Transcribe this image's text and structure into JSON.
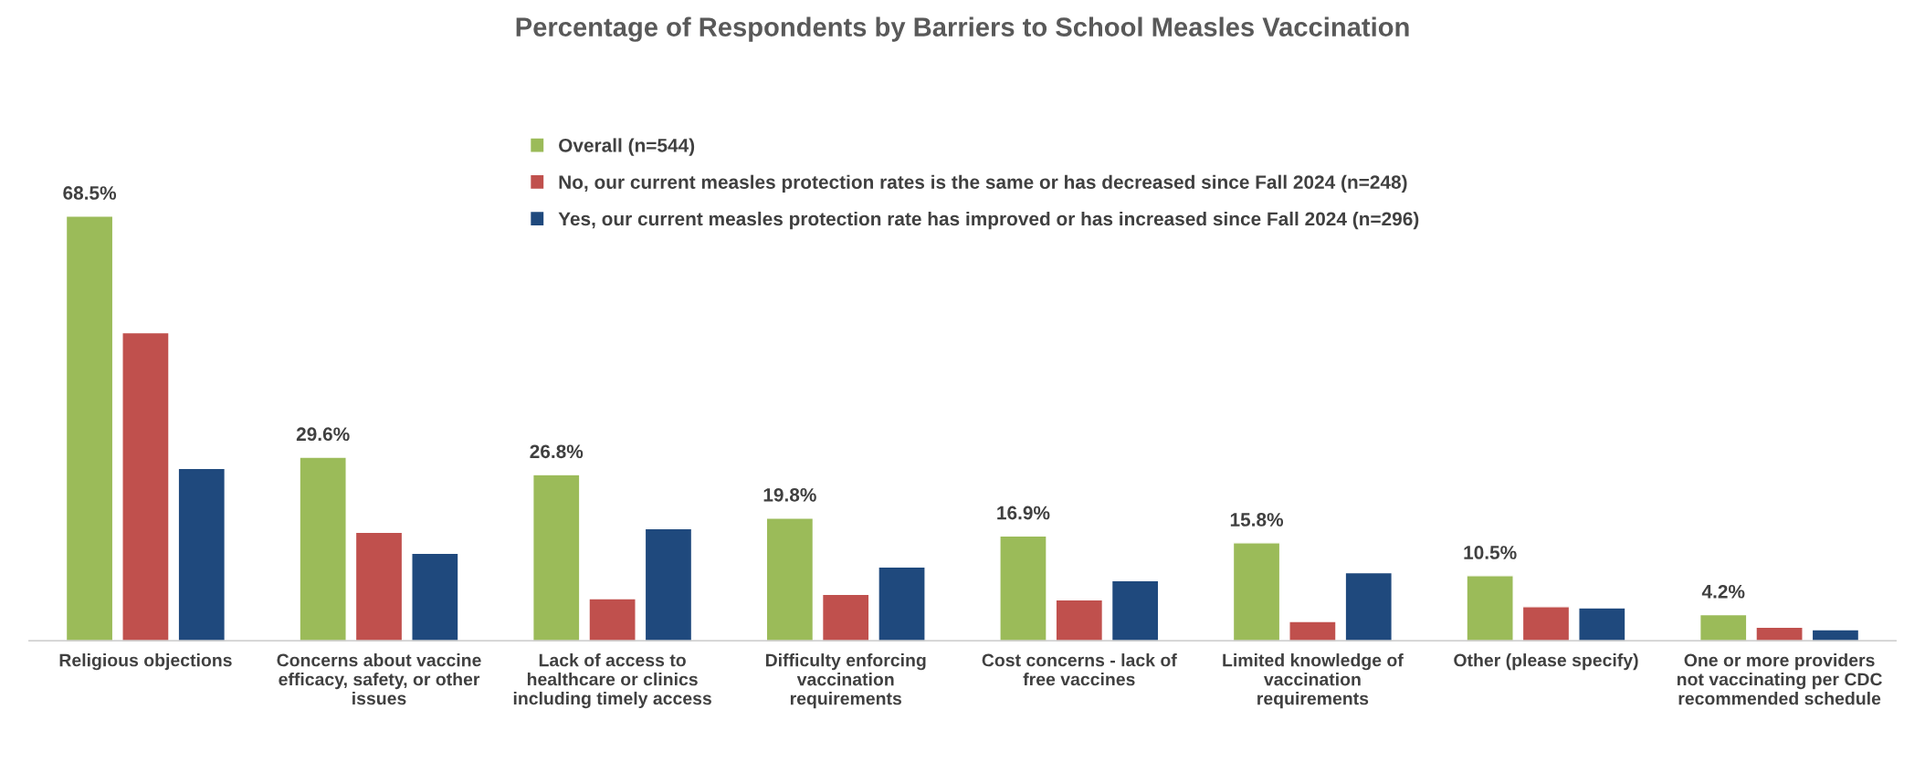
{
  "chart_data": {
    "type": "bar",
    "title": "Percentage of Respondents by Barriers to School Measles Vaccination",
    "categories": [
      "Religious objections",
      "Concerns about vaccine\nefficacy, safety, or other\nissues",
      "Lack of access to\nhealthcare or clinics\nincluding timely access",
      "Difficulty enforcing\nvaccination\nrequirements",
      "Cost concerns - lack of\nfree vaccines",
      "Limited knowledge of\nvaccination\nrequirements",
      "Other (please specify)",
      "One or more providers\nnot vaccinating per CDC\nrecommended schedule"
    ],
    "series": [
      {
        "name": "Overall (n=544)",
        "color": "#9bbb59",
        "values": [
          68.5,
          29.6,
          26.8,
          19.8,
          16.9,
          15.8,
          10.5,
          4.2
        ],
        "value_labels": [
          "68.5%",
          "29.6%",
          "26.8%",
          "19.8%",
          "16.9%",
          "15.8%",
          "10.5%",
          "4.2%"
        ]
      },
      {
        "name": "No, our current measles protection rates is the same or has decreased since Fall 2024 (n=248)",
        "color": "#c0504d",
        "values": [
          49.7,
          17.5,
          6.8,
          7.5,
          6.6,
          3.1,
          5.5,
          2.2
        ]
      },
      {
        "name": "Yes, our current measles protection rate has improved or has increased since Fall 2024 (n=296)",
        "color": "#1f497d",
        "values": [
          27.8,
          14.1,
          18.1,
          11.9,
          9.7,
          11.0,
          5.3,
          1.8
        ]
      }
    ],
    "legend": "top",
    "tick_labels": "x"
  }
}
